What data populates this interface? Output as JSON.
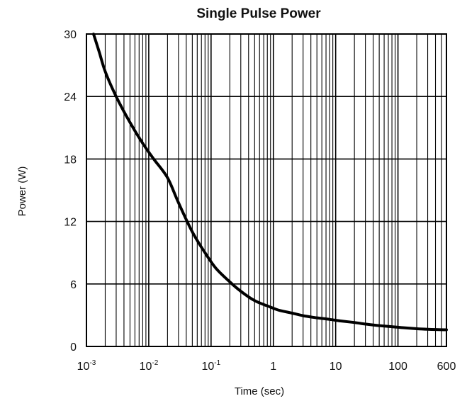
{
  "chart_data": {
    "type": "line",
    "title": "Single Pulse Power",
    "xlabel": "Time (sec)",
    "ylabel": "Power  (W)",
    "x_scale": "log",
    "xlim": [
      0.001,
      600
    ],
    "ylim": [
      0,
      30
    ],
    "grid": true,
    "x_ticks": [
      {
        "value": 0.001,
        "base": "10",
        "exp": "-3"
      },
      {
        "value": 0.01,
        "base": "10",
        "exp": "-2"
      },
      {
        "value": 0.1,
        "base": "10",
        "exp": "-1"
      },
      {
        "value": 1,
        "base": "1",
        "exp": ""
      },
      {
        "value": 10,
        "base": "10",
        "exp": ""
      },
      {
        "value": 100,
        "base": "100",
        "exp": ""
      },
      {
        "value": 600,
        "base": "600",
        "exp": ""
      }
    ],
    "y_ticks": [
      0,
      6,
      12,
      18,
      24,
      30
    ],
    "series": [
      {
        "x": [
          0.0013,
          0.0016,
          0.002,
          0.003,
          0.005,
          0.008,
          0.012,
          0.02,
          0.03,
          0.05,
          0.08,
          0.12,
          0.2,
          0.3,
          0.5,
          0.8,
          1.2,
          2,
          3,
          5,
          8,
          12,
          20,
          30,
          50,
          80,
          120,
          200,
          300,
          600
        ],
        "y": [
          30,
          28.3,
          26.4,
          24.0,
          21.5,
          19.5,
          18.0,
          16.2,
          13.8,
          11.0,
          9.0,
          7.5,
          6.2,
          5.3,
          4.4,
          3.9,
          3.5,
          3.2,
          2.95,
          2.75,
          2.6,
          2.45,
          2.3,
          2.15,
          2.0,
          1.9,
          1.8,
          1.7,
          1.65,
          1.6
        ]
      }
    ]
  }
}
